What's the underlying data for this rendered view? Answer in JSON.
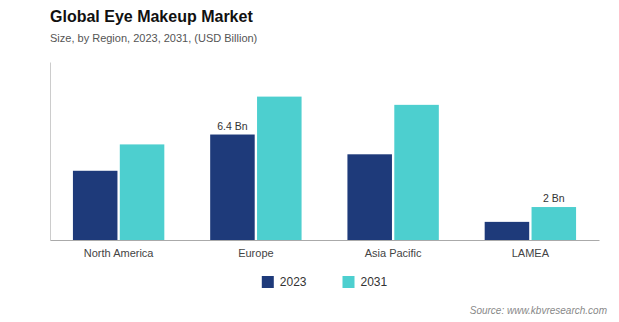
{
  "chart_data": {
    "type": "bar",
    "title": "Global Eye Makeup Market",
    "subtitle": "Size, by Region, 2023, 2031, (USD Billion)",
    "categories": [
      "North America",
      "Europe",
      "Asia Pacific",
      "LAMEA"
    ],
    "series": [
      {
        "name": "2023",
        "color": "#1e3a7a",
        "values": [
          4.2,
          6.4,
          5.2,
          1.1
        ]
      },
      {
        "name": "2031",
        "color": "#4dcfcf",
        "values": [
          5.8,
          8.7,
          8.2,
          2.0
        ]
      }
    ],
    "annotations": [
      {
        "text": "6.4 Bn",
        "x": "Europe",
        "series": "2023"
      },
      {
        "text": "2 Bn",
        "x": "LAMEA",
        "series": "2031"
      }
    ],
    "source": "Source: www.kbvresearch.com",
    "ylim": [
      0,
      10.8
    ],
    "grid": false,
    "legend": "bottom",
    "tick_labels": "x"
  }
}
